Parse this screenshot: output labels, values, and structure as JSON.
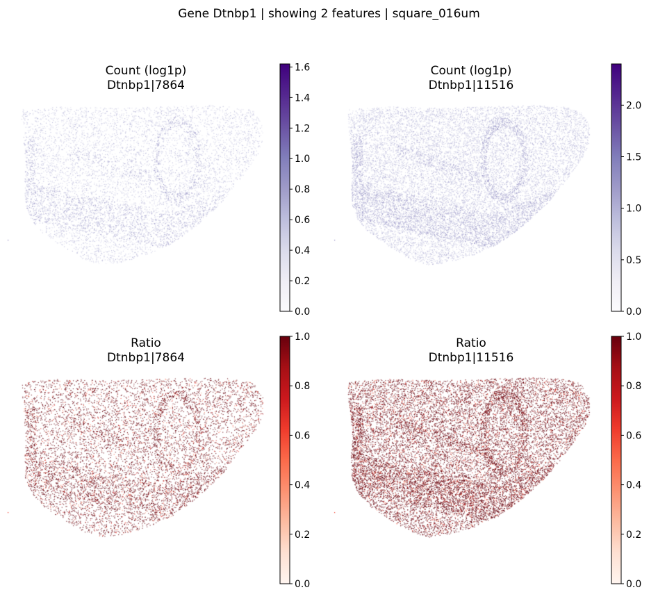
{
  "figure": {
    "suptitle": "Gene Dtnbp1 | showing 2 features | square_016um"
  },
  "colormaps": {
    "Purples": [
      "#fcfbfd",
      "#efedf5",
      "#dadaeb",
      "#bcbddc",
      "#9e9ac8",
      "#807dba",
      "#6a51a3",
      "#54278f",
      "#3f007d"
    ],
    "Reds": [
      "#fff5f0",
      "#fee0d2",
      "#fcbba1",
      "#fc9272",
      "#fb6a4a",
      "#ef3b2c",
      "#cb181d",
      "#a50f15",
      "#67000d"
    ]
  },
  "chart_data": [
    {
      "type": "scatter",
      "title": "Count (log1p)",
      "subtitle": "Dtnbp1|7864",
      "metric": "count",
      "colormap": "Purples",
      "colorbar": {
        "range": [
          0,
          1.62
        ],
        "ticks": [
          "0.0",
          "0.2",
          "0.4",
          "0.6",
          "0.8",
          "1.0",
          "1.2",
          "1.4",
          "1.6"
        ]
      },
      "density": 0.33,
      "value_mean": 0.62
    },
    {
      "type": "scatter",
      "title": "Count (log1p)",
      "subtitle": "Dtnbp1|11516",
      "metric": "count",
      "colormap": "Purples",
      "colorbar": {
        "range": [
          0,
          2.4
        ],
        "ticks": [
          "0.0",
          "0.5",
          "1.0",
          "1.5",
          "2.0"
        ]
      },
      "density": 0.62,
      "value_mean": 0.95
    },
    {
      "type": "scatter",
      "title": "Ratio",
      "subtitle": "Dtnbp1|7864",
      "metric": "ratio",
      "colormap": "Reds",
      "colorbar": {
        "range": [
          0,
          1.0
        ],
        "ticks": [
          "0.0",
          "0.2",
          "0.4",
          "0.6",
          "0.8",
          "1.0"
        ]
      },
      "density": 0.33,
      "value_mean": 0.95
    },
    {
      "type": "scatter",
      "title": "Ratio",
      "subtitle": "Dtnbp1|11516",
      "metric": "ratio",
      "colormap": "Reds",
      "colorbar": {
        "range": [
          0,
          1.0
        ],
        "ticks": [
          "0.0",
          "0.2",
          "0.4",
          "0.6",
          "0.8",
          "1.0"
        ]
      },
      "density": 0.62,
      "value_mean": 0.97
    }
  ]
}
